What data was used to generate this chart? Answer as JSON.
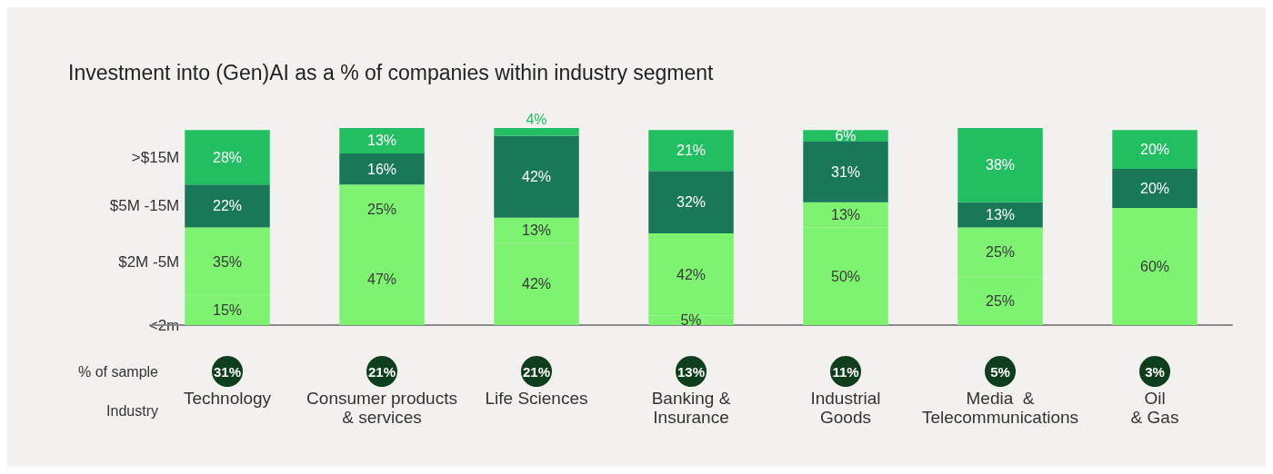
{
  "chart_data": {
    "type": "bar",
    "stacked": true,
    "title": "Investment into (Gen)AI as a % of companies within industry segment",
    "categories": [
      "Technology",
      "Consumer products\n& services",
      "Life Sciences",
      "Banking &\nInsurance",
      "Industrial\nGoods",
      "Media  &\nTelecommunications",
      "Oil\n& Gas"
    ],
    "series": [
      {
        "name": "<2m",
        "color": "#7df371",
        "values": [
          15,
          47,
          42,
          5,
          50,
          25,
          null
        ],
        "value_labels": [
          "15%",
          "47%",
          "42%",
          "5%",
          "50%",
          "25%",
          null
        ]
      },
      {
        "name": "$2M -5M",
        "color": "#7df371",
        "values": [
          35,
          25,
          13,
          42,
          13,
          25,
          60
        ],
        "value_labels": [
          "35%",
          "25%",
          "13%",
          "42%",
          "13%",
          "25%",
          "60%"
        ]
      },
      {
        "name": "$5M -15M",
        "color": "#187857",
        "values": [
          22,
          16,
          42,
          32,
          31,
          13,
          20
        ],
        "value_labels": [
          "22%",
          "16%",
          "42%",
          "32%",
          "31%",
          "13%",
          "20%"
        ]
      },
      {
        "name": ">$15M",
        "color": "#22bf62",
        "values": [
          28,
          13,
          4,
          21,
          6,
          38,
          20
        ],
        "value_labels": [
          "28%",
          "13%",
          "4%",
          "21%",
          "6%",
          "38%",
          "20%"
        ]
      }
    ],
    "annotations": [
      "% of sample",
      "Industry",
      "31%",
      "21%",
      "21%",
      "13%",
      "11%",
      "5%",
      "3%"
    ],
    "legend": false
  }
}
